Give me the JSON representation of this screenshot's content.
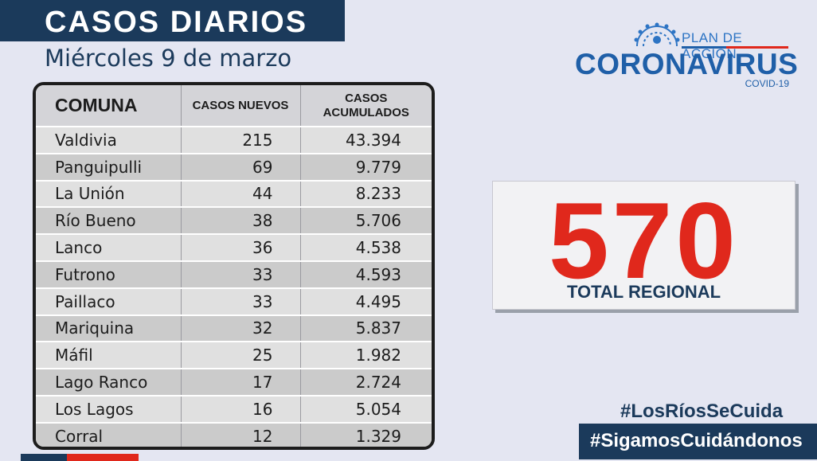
{
  "header": {
    "title": "CASOS DIARIOS",
    "date": "Miércoles 9 de marzo"
  },
  "table": {
    "headers": {
      "comuna": "COMUNA",
      "nuevos": "CASOS NUEVOS",
      "acumulados_1": "CASOS",
      "acumulados_2": "ACUMULADOS"
    },
    "rows": [
      {
        "comuna": "Valdivia",
        "nuevos": "215",
        "acumulados": "43.394"
      },
      {
        "comuna": "Panguipulli",
        "nuevos": "69",
        "acumulados": "9.779"
      },
      {
        "comuna": "La Unión",
        "nuevos": "44",
        "acumulados": "8.233"
      },
      {
        "comuna": "Río Bueno",
        "nuevos": "38",
        "acumulados": "5.706"
      },
      {
        "comuna": "Lanco",
        "nuevos": "36",
        "acumulados": "4.538"
      },
      {
        "comuna": "Futrono",
        "nuevos": "33",
        "acumulados": "4.593"
      },
      {
        "comuna": "Paillaco",
        "nuevos": "33",
        "acumulados": "4.495"
      },
      {
        "comuna": "Mariquina",
        "nuevos": "32",
        "acumulados": "5.837"
      },
      {
        "comuna": "Máfil",
        "nuevos": "25",
        "acumulados": "1.982"
      },
      {
        "comuna": "Lago Ranco",
        "nuevos": "17",
        "acumulados": "2.724"
      },
      {
        "comuna": "Los Lagos",
        "nuevos": "16",
        "acumulados": "5.054"
      },
      {
        "comuna": "Corral",
        "nuevos": "12",
        "acumulados": "1.329"
      }
    ]
  },
  "logo": {
    "top": "PLAN DE ACCIÓN",
    "main": "CORONAVIRUS",
    "sub": "COVID-19",
    "icon": "virus-icon"
  },
  "total": {
    "value": "570",
    "label": "TOTAL REGIONAL"
  },
  "hashtags": {
    "first": "#LosRíosSeCuida",
    "second": "#SigamosCuidándonos"
  },
  "colors": {
    "navy": "#1b3a5b",
    "red": "#e0281c",
    "blue": "#1f5fa8",
    "background": "#e4e6f2"
  }
}
